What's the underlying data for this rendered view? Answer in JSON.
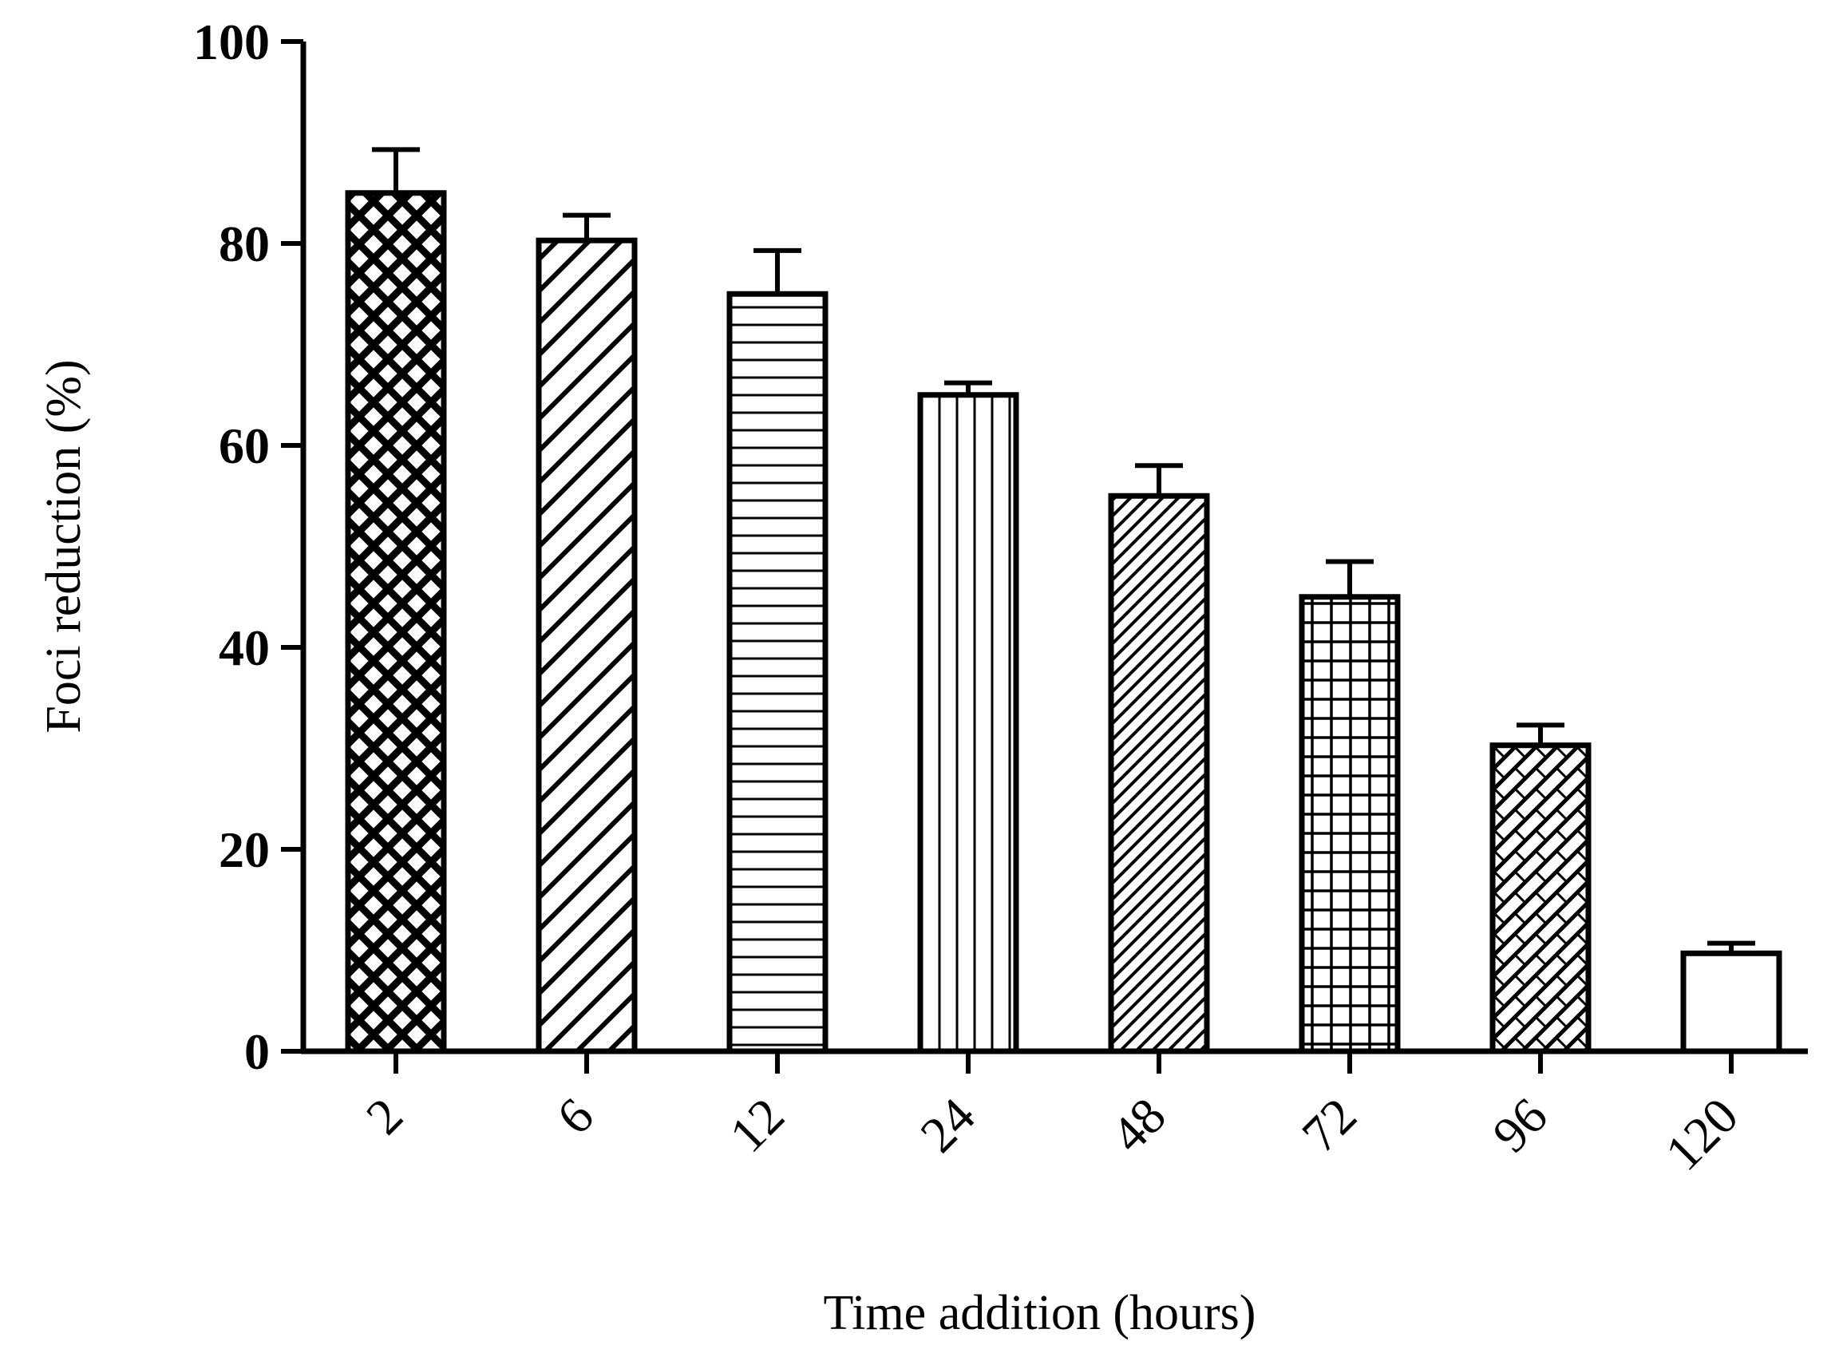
{
  "chart_data": {
    "type": "bar",
    "title": "",
    "xlabel": "Time addition (hours)",
    "ylabel": "Foci reduction (%)",
    "categories": [
      "2",
      "6",
      "12",
      "24",
      "48",
      "72",
      "96",
      "120"
    ],
    "values": [
      85,
      80.3,
      75,
      65,
      55,
      45,
      30.3,
      9.7
    ],
    "errors": [
      4.3,
      2.5,
      4.3,
      1.2,
      3,
      3.5,
      2,
      1
    ],
    "patterns": [
      "crosshatch-diamond",
      "diagonal-wide",
      "horizontal",
      "vertical",
      "diagonal-dense",
      "grid",
      "brick-diagonal",
      "none"
    ],
    "ylim": [
      0,
      100
    ],
    "yticks": [
      0,
      20,
      40,
      60,
      80,
      100
    ],
    "grid": false,
    "legend": "none",
    "colors": {
      "stroke": "#000000",
      "background": "#ffffff"
    }
  }
}
